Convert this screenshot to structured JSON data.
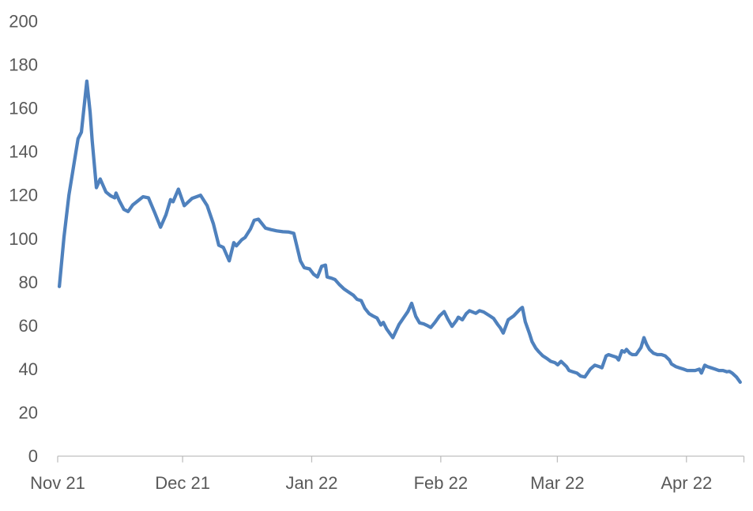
{
  "chart_data": {
    "type": "line",
    "title": "",
    "grid": false,
    "legend": false,
    "x_axis": {
      "unit": "days from first month tick (Nov 2021)",
      "tick_labels": [
        "Nov 21",
        "Dec 21",
        "Jan 22",
        "Feb 22",
        "Mar 22",
        "Apr 22"
      ],
      "tick_positions_days": [
        0,
        30,
        61,
        92,
        120,
        151
      ],
      "axis_start_day": 0,
      "axis_end_day": 164.8
    },
    "y_axis": {
      "tick_values": [
        0,
        20,
        40,
        60,
        80,
        100,
        120,
        140,
        160,
        180,
        200
      ],
      "min": 0,
      "max": 200
    },
    "series": [
      {
        "name": "",
        "color": "#4f81bd",
        "points": [
          [
            0.4,
            78
          ],
          [
            1.5,
            100.5
          ],
          [
            2.7,
            120
          ],
          [
            3.8,
            133
          ],
          [
            4.9,
            146
          ],
          [
            5.7,
            149
          ],
          [
            7.0,
            172.5
          ],
          [
            7.8,
            158
          ],
          [
            8.3,
            145
          ],
          [
            9.3,
            123.5
          ],
          [
            10.2,
            127.5
          ],
          [
            11.6,
            121.5
          ],
          [
            12.7,
            119.8
          ],
          [
            13.7,
            118.8
          ],
          [
            14.0,
            121
          ],
          [
            14.8,
            117.5
          ],
          [
            15.9,
            113.5
          ],
          [
            16.9,
            112.5
          ],
          [
            18.0,
            115.5
          ],
          [
            19.2,
            117.3
          ],
          [
            20.5,
            119.3
          ],
          [
            21.8,
            118.8
          ],
          [
            23.3,
            112
          ],
          [
            24.7,
            105.3
          ],
          [
            26.0,
            111
          ],
          [
            27.1,
            118
          ],
          [
            27.7,
            117
          ],
          [
            29.0,
            122.8
          ],
          [
            30.4,
            115.2
          ],
          [
            32.3,
            118.6
          ],
          [
            34.3,
            120
          ],
          [
            35.9,
            115.2
          ],
          [
            37.4,
            106.8
          ],
          [
            38.7,
            97
          ],
          [
            39.8,
            96
          ],
          [
            41.2,
            89.8
          ],
          [
            42.3,
            98.2
          ],
          [
            42.9,
            96.7
          ],
          [
            44.2,
            99.5
          ],
          [
            45.0,
            100.6
          ],
          [
            46.3,
            104.5
          ],
          [
            47.2,
            108.5
          ],
          [
            48.2,
            109
          ],
          [
            49.9,
            104.9
          ],
          [
            51.2,
            104.2
          ],
          [
            52.6,
            103.6
          ],
          [
            54.1,
            103.2
          ],
          [
            55.4,
            103.1
          ],
          [
            56.7,
            102.5
          ],
          [
            57.7,
            94.5
          ],
          [
            58.3,
            89.8
          ],
          [
            59.2,
            86.7
          ],
          [
            60.5,
            86.1
          ],
          [
            61.5,
            83.6
          ],
          [
            62.4,
            82.4
          ],
          [
            63.4,
            87.3
          ],
          [
            64.3,
            87.9
          ],
          [
            64.7,
            82.4
          ],
          [
            65.8,
            81.8
          ],
          [
            66.6,
            81.2
          ],
          [
            67.7,
            78.8
          ],
          [
            68.7,
            77
          ],
          [
            69.6,
            75.8
          ],
          [
            71.0,
            74
          ],
          [
            71.9,
            72.1
          ],
          [
            72.9,
            71.5
          ],
          [
            73.8,
            67.9
          ],
          [
            74.8,
            65.5
          ],
          [
            75.7,
            64.5
          ],
          [
            76.7,
            63.5
          ],
          [
            77.6,
            60.3
          ],
          [
            78.2,
            61.5
          ],
          [
            79.0,
            58.5
          ],
          [
            80.5,
            54.5
          ],
          [
            82.0,
            60.6
          ],
          [
            83.1,
            63.7
          ],
          [
            84.1,
            66.5
          ],
          [
            85.0,
            70.3
          ],
          [
            86.0,
            64.3
          ],
          [
            86.9,
            61.3
          ],
          [
            87.9,
            60.8
          ],
          [
            88.6,
            60.2
          ],
          [
            89.6,
            59.2
          ],
          [
            90.6,
            61.5
          ],
          [
            91.7,
            64.5
          ],
          [
            92.8,
            66.5
          ],
          [
            93.7,
            63
          ],
          [
            94.7,
            59.7
          ],
          [
            95.8,
            62.5
          ],
          [
            96.2,
            63.9
          ],
          [
            97.2,
            62.7
          ],
          [
            98.1,
            65.5
          ],
          [
            98.9,
            66.9
          ],
          [
            100.4,
            65.7
          ],
          [
            101.3,
            66.9
          ],
          [
            102.3,
            66.3
          ],
          [
            103.8,
            64.5
          ],
          [
            104.7,
            63.3
          ],
          [
            105.7,
            60.5
          ],
          [
            106.3,
            59
          ],
          [
            107.0,
            56.6
          ],
          [
            108.2,
            62.7
          ],
          [
            109.5,
            64.5
          ],
          [
            111.0,
            67.5
          ],
          [
            111.6,
            68.4
          ],
          [
            112.3,
            61.8
          ],
          [
            113.3,
            56.4
          ],
          [
            113.9,
            52.7
          ],
          [
            114.8,
            49.7
          ],
          [
            115.6,
            47.9
          ],
          [
            116.5,
            46.1
          ],
          [
            117.5,
            44.9
          ],
          [
            118.4,
            43.6
          ],
          [
            119.4,
            43
          ],
          [
            120.1,
            42
          ],
          [
            120.9,
            43.6
          ],
          [
            122.2,
            41.2
          ],
          [
            122.8,
            39.4
          ],
          [
            123.7,
            38.8
          ],
          [
            124.7,
            38.2
          ],
          [
            125.6,
            36.8
          ],
          [
            126.6,
            36.4
          ],
          [
            127.9,
            40
          ],
          [
            129.0,
            41.8
          ],
          [
            130.0,
            41.2
          ],
          [
            130.7,
            40.6
          ],
          [
            131.7,
            46.1
          ],
          [
            132.3,
            46.7
          ],
          [
            133.2,
            46.1
          ],
          [
            134.2,
            45.5
          ],
          [
            134.7,
            44.2
          ],
          [
            135.5,
            48.5
          ],
          [
            136.1,
            47.9
          ],
          [
            136.6,
            49.1
          ],
          [
            137.4,
            47.3
          ],
          [
            138.0,
            46.7
          ],
          [
            138.9,
            46.7
          ],
          [
            140.1,
            50
          ],
          [
            140.8,
            54.5
          ],
          [
            141.4,
            51.5
          ],
          [
            142.1,
            49.1
          ],
          [
            143.1,
            47.3
          ],
          [
            144.0,
            46.7
          ],
          [
            145.0,
            46.7
          ],
          [
            145.9,
            46.1
          ],
          [
            146.9,
            44.2
          ],
          [
            147.4,
            42.4
          ],
          [
            148.4,
            41.2
          ],
          [
            149.3,
            40.6
          ],
          [
            150.3,
            40
          ],
          [
            151.2,
            39.4
          ],
          [
            152.2,
            39.4
          ],
          [
            153.1,
            39.4
          ],
          [
            154.1,
            40
          ],
          [
            154.6,
            38.2
          ],
          [
            155.4,
            41.8
          ],
          [
            156.0,
            41.2
          ],
          [
            156.9,
            40.6
          ],
          [
            157.9,
            40
          ],
          [
            158.8,
            39.4
          ],
          [
            159.8,
            39.4
          ],
          [
            160.7,
            38.8
          ],
          [
            161.3,
            39
          ],
          [
            162.0,
            38.2
          ],
          [
            163.0,
            36.4
          ],
          [
            163.9,
            34
          ]
        ]
      }
    ]
  },
  "colors": {
    "line": "#4f81bd",
    "axis": "#bfbfbf",
    "tick_label": "#595959",
    "background": "#ffffff"
  }
}
